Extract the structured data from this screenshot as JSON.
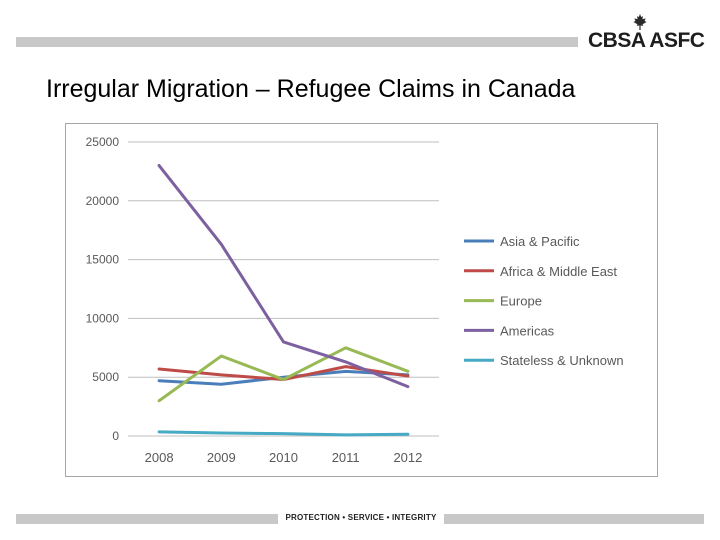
{
  "header": {
    "logo_text": "CBSA ASFC",
    "logo_icon": "maple-leaf-icon"
  },
  "slide": {
    "title": "Irregular Migration – Refugee Claims in Canada"
  },
  "footer": {
    "motto": "PROTECTION • SERVICE • INTEGRITY"
  },
  "colors": {
    "bar": "#c8c8c8",
    "text": "#000000"
  },
  "chart_data": {
    "type": "line",
    "title": "",
    "xlabel": "",
    "ylabel": "",
    "x": [
      "2008",
      "2009",
      "2010",
      "2011",
      "2012"
    ],
    "ylim": [
      0,
      25000
    ],
    "yticks": [
      "0",
      "5000",
      "10000",
      "15000",
      "20000",
      "25000"
    ],
    "grid": true,
    "legend": "right",
    "series": [
      {
        "name": "Asia & Pacific",
        "color": "#4a7ebb",
        "values": [
          4700,
          4400,
          5000,
          5500,
          5200
        ]
      },
      {
        "name": "Africa & Middle East",
        "color": "#be4b48",
        "values": [
          5700,
          5200,
          4800,
          5900,
          5100
        ]
      },
      {
        "name": "Europe",
        "color": "#98b954",
        "values": [
          3000,
          6800,
          4800,
          7500,
          5500
        ]
      },
      {
        "name": "Americas",
        "color": "#7d60a0",
        "values": [
          23000,
          16300,
          8000,
          6300,
          4200
        ]
      },
      {
        "name": "Stateless & Unknown",
        "color": "#46aac5",
        "values": [
          350,
          250,
          200,
          100,
          150
        ]
      }
    ]
  }
}
